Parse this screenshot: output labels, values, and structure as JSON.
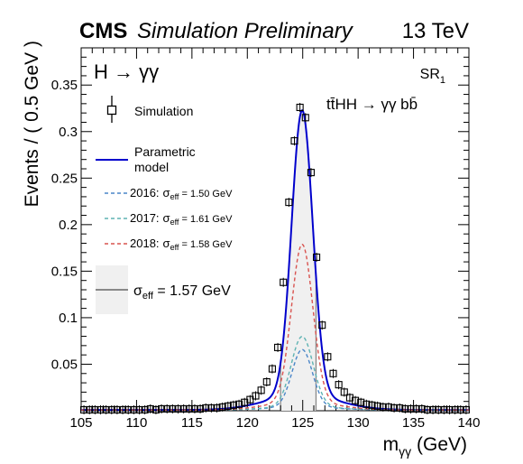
{
  "header": {
    "experiment": "CMS",
    "tag": "Simulation Preliminary",
    "energy": "13 TeV"
  },
  "annotations": {
    "channel": "H → γγ",
    "region": "SR",
    "region_index": "1",
    "process": "tt̄HH → γγ bb̄"
  },
  "legend": {
    "simulation": "Simulation",
    "model_line1": "Parametric",
    "model_line2": "model",
    "years": [
      {
        "year": "2016:",
        "sigma": "σ",
        "sub": "eff",
        "value": " = 1.50 GeV",
        "color": "#4a86c8"
      },
      {
        "year": "2017:",
        "sigma": "σ",
        "sub": "eff",
        "value": " = 1.61 GeV",
        "color": "#5fb3b3"
      },
      {
        "year": "2018:",
        "sigma": "σ",
        "sub": "eff",
        "value": " = 1.58 GeV",
        "color": "#d9534f"
      }
    ],
    "eff_sigma": "σ",
    "eff_sub": "eff",
    "eff_value": " = 1.57 GeV"
  },
  "colors": {
    "model": "#0000cc",
    "band": "#f0f0f0",
    "band_line": "#888888"
  },
  "chart_data": {
    "type": "line",
    "xlabel_main": "m",
    "xlabel_sub": "γγ",
    "xlabel_unit": " (GeV)",
    "ylabel": "Events / ( 0.5 GeV )",
    "xlim": [
      105,
      140
    ],
    "ylim": [
      0,
      0.39
    ],
    "xticks": [
      105,
      110,
      115,
      120,
      125,
      130,
      135,
      140
    ],
    "yticks": [
      0.05,
      0.1,
      0.15,
      0.2,
      0.25,
      0.3,
      0.35
    ],
    "ytick_labels": [
      "0.05",
      "0.1",
      "0.15",
      "0.2",
      "0.25",
      "0.3",
      "0.35"
    ],
    "effective_sigma_band": [
      123.0,
      126.2
    ],
    "simulation_points": {
      "x": [
        105.25,
        105.75,
        106.25,
        106.75,
        107.25,
        107.75,
        108.25,
        108.75,
        109.25,
        109.75,
        110.25,
        110.75,
        111.25,
        111.75,
        112.25,
        112.75,
        113.25,
        113.75,
        114.25,
        114.75,
        115.25,
        115.75,
        116.25,
        116.75,
        117.25,
        117.75,
        118.25,
        118.75,
        119.25,
        119.75,
        120.25,
        120.75,
        121.25,
        121.75,
        122.25,
        122.75,
        123.25,
        123.75,
        124.25,
        124.75,
        125.25,
        125.75,
        126.25,
        126.75,
        127.25,
        127.75,
        128.25,
        128.75,
        129.25,
        129.75,
        130.25,
        130.75,
        131.25,
        131.75,
        132.25,
        132.75,
        133.25,
        133.75,
        134.25,
        134.75,
        135.25,
        135.75,
        136.25,
        136.75,
        137.25,
        137.75,
        138.25,
        138.75,
        139.25,
        139.75
      ],
      "y": [
        0.001,
        0.001,
        0.001,
        0.001,
        0.001,
        0.001,
        0.001,
        0.001,
        0.001,
        0.001,
        0.001,
        0.001,
        0.002,
        0.001,
        0.002,
        0.002,
        0.002,
        0.002,
        0.002,
        0.002,
        0.002,
        0.002,
        0.003,
        0.003,
        0.003,
        0.004,
        0.005,
        0.006,
        0.007,
        0.009,
        0.012,
        0.016,
        0.022,
        0.031,
        0.045,
        0.068,
        0.138,
        0.224,
        0.29,
        0.326,
        0.315,
        0.256,
        0.165,
        0.092,
        0.058,
        0.04,
        0.028,
        0.02,
        0.014,
        0.011,
        0.009,
        0.007,
        0.006,
        0.005,
        0.004,
        0.004,
        0.003,
        0.003,
        0.002,
        0.002,
        0.002,
        0.002,
        0.001,
        0.001,
        0.001,
        0.001,
        0.001,
        0.001,
        0.001,
        0.001
      ]
    },
    "series": [
      {
        "name": "Parametric model",
        "kind": "total",
        "mean": 124.95,
        "peak": 0.322,
        "sigma": 0.95,
        "tail": 0.05,
        "tail_width": 3.2
      },
      {
        "name": "2016",
        "kind": "component",
        "mean": 124.95,
        "peak": 0.065,
        "sigma": 0.92,
        "tail": 0.05,
        "tail_width": 3.0
      },
      {
        "name": "2017",
        "kind": "component",
        "mean": 124.95,
        "peak": 0.079,
        "sigma": 0.98,
        "tail": 0.05,
        "tail_width": 3.0
      },
      {
        "name": "2018",
        "kind": "component",
        "mean": 124.95,
        "peak": 0.178,
        "sigma": 0.96,
        "tail": 0.05,
        "tail_width": 3.0
      }
    ]
  }
}
